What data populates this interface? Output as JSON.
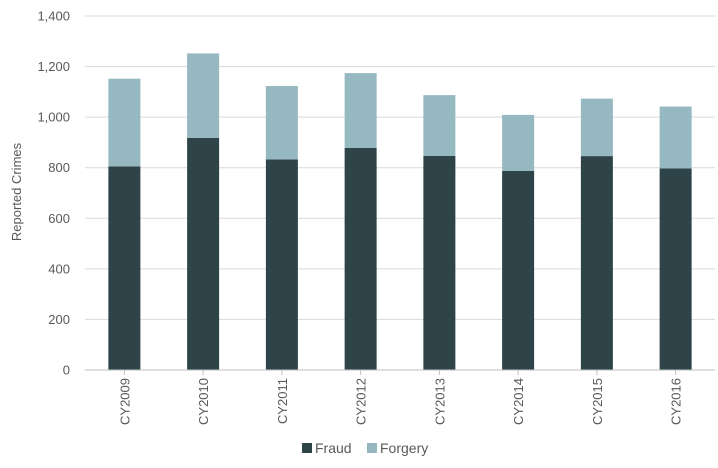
{
  "chart_data": {
    "type": "bar",
    "stacked": true,
    "categories": [
      "CY2009",
      "CY2010",
      "CY2011",
      "CY2012",
      "CY2013",
      "CY2014",
      "CY2015",
      "CY2016"
    ],
    "series": [
      {
        "name": "Fraud",
        "color": "#2e4448",
        "values": [
          805,
          918,
          833,
          878,
          847,
          787,
          846,
          797
        ]
      },
      {
        "name": "Forgery",
        "color": "#95b8c1",
        "values": [
          347,
          334,
          290,
          296,
          240,
          222,
          227,
          245
        ]
      }
    ],
    "title": "",
    "xlabel": "",
    "ylabel": "Reported Crimes",
    "ylim": [
      0,
      1400
    ],
    "yticks": [
      0,
      200,
      400,
      600,
      800,
      1000,
      1200,
      1400
    ],
    "ytick_labels": [
      "0",
      "200",
      "400",
      "600",
      "800",
      "1,000",
      "1,200",
      "1,400"
    ],
    "grid": true,
    "legend_position": "bottom",
    "gridline_color": "#d9d9d9",
    "axis_color": "#bfbfbf"
  }
}
